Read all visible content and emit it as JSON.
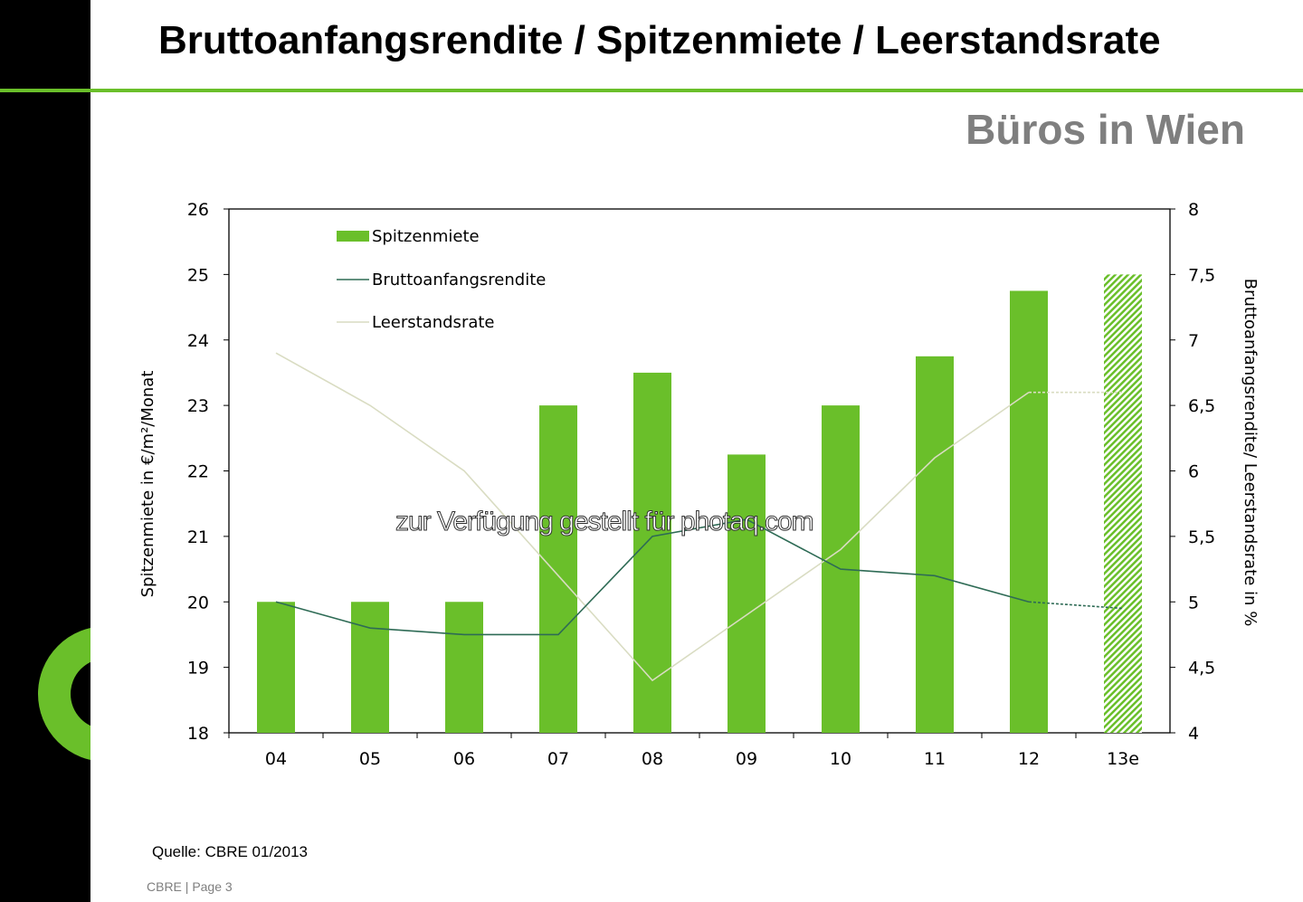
{
  "header": {
    "title": "Bruttoanfangsrendite / Spitzenmiete / Leerstandsrate",
    "subtitle": "Büros in Wien"
  },
  "footer": {
    "source": "Quelle: CBRE 01/2013",
    "page": "CBRE | Page 3"
  },
  "watermark": "zur Verfügung gestellt für photaq.com",
  "colors": {
    "accent": "#6abf2a",
    "brutto": "#2e6b55",
    "leerstand": "#d9dcc2"
  },
  "chart_data": {
    "type": "bar",
    "categories": [
      "04",
      "05",
      "06",
      "07",
      "08",
      "09",
      "10",
      "11",
      "12",
      "13e"
    ],
    "ylabel": "Spitzenmiete in €/m²/Monat",
    "y2label": "Bruttoanfangsrendite/ Leerstandsrate in %",
    "ylim": [
      18,
      26
    ],
    "y2lim": [
      4,
      8
    ],
    "yticks": [
      "18",
      "19",
      "20",
      "21",
      "22",
      "23",
      "24",
      "25",
      "26"
    ],
    "y2ticks": [
      "4",
      "4,5",
      "5",
      "5,5",
      "6",
      "6,5",
      "7",
      "7,5",
      "8"
    ],
    "legend_position": "top-left",
    "series": [
      {
        "name": "Spitzenmiete",
        "type": "bar",
        "axis": "left",
        "values": [
          20,
          20,
          20,
          23,
          23.5,
          22.25,
          23,
          23.75,
          24.75,
          25
        ],
        "forecast_index": 9
      },
      {
        "name": "Bruttoanfangsrendite",
        "type": "line",
        "axis": "right",
        "values": [
          5.0,
          4.8,
          4.75,
          4.75,
          5.5,
          5.63,
          5.25,
          5.2,
          5.0,
          4.95
        ]
      },
      {
        "name": "Leerstandsrate",
        "type": "line",
        "axis": "right",
        "values": [
          6.9,
          6.5,
          6.0,
          5.2,
          4.4,
          4.9,
          5.4,
          6.1,
          6.6,
          6.6
        ]
      }
    ]
  }
}
